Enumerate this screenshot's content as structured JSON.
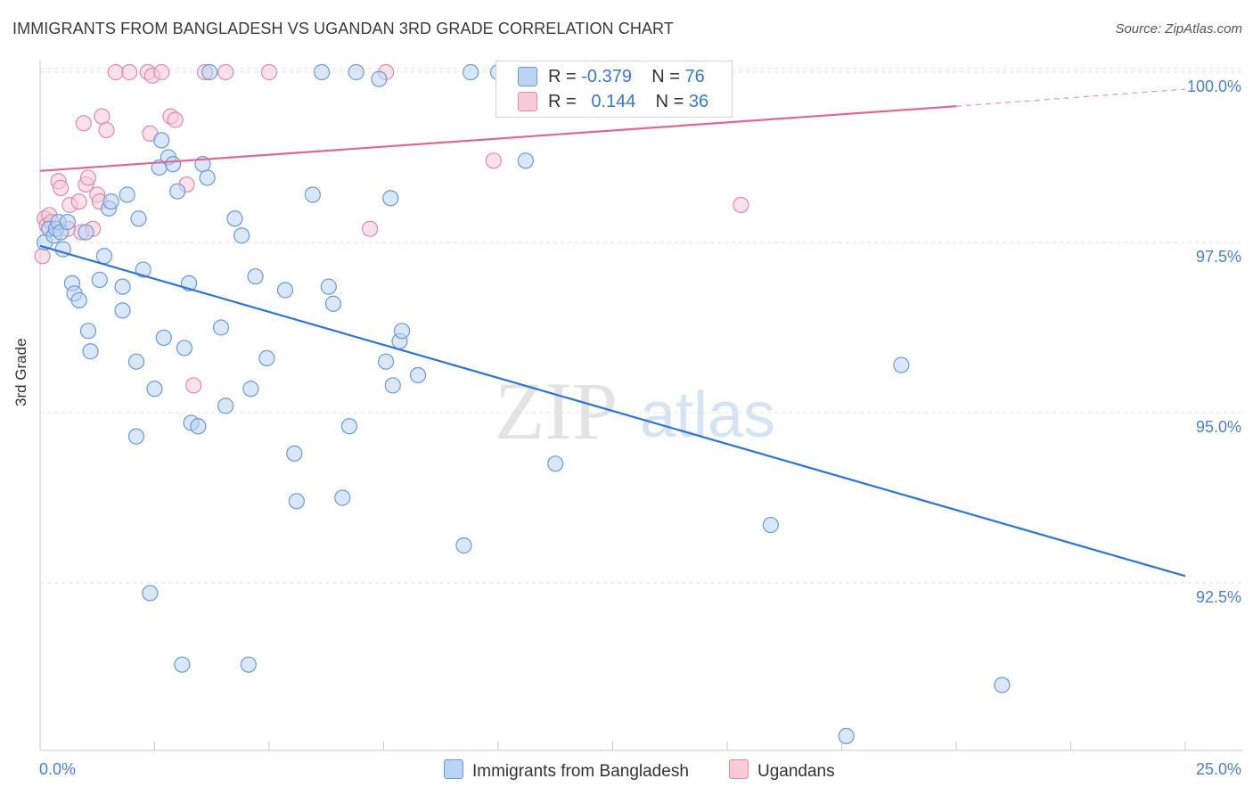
{
  "title": "IMMIGRANTS FROM BANGLADESH VS UGANDAN 3RD GRADE CORRELATION CHART",
  "source": "Source: ZipAtlas.com",
  "watermark": {
    "zip": "ZIP",
    "atlas": "atlas"
  },
  "legend": {
    "rows": [
      {
        "r_label": "R =",
        "r_value": "-0.379",
        "n_label": "N =",
        "n_value": "76",
        "color": "#a8c8f0"
      },
      {
        "r_label": "R =",
        "r_value": "0.144",
        "n_label": "N =",
        "n_value": "36",
        "color": "#f4b8ca"
      }
    ]
  },
  "bottom_legend": {
    "series1": "Immigrants from Bangladesh",
    "series2": "Ugandans"
  },
  "chart_data": {
    "type": "scatter",
    "title": "IMMIGRANTS FROM BANGLADESH VS UGANDAN 3RD GRADE CORRELATION CHART",
    "xlabel": "",
    "ylabel": "3rd Grade",
    "xlim": [
      0,
      25
    ],
    "ylim": [
      90.2,
      100.3
    ],
    "x_tick_labels": [
      "0.0%",
      "25.0%"
    ],
    "y_ticks": [
      92.5,
      95.0,
      97.5,
      100.0
    ],
    "y_tick_labels": [
      "92.5%",
      "95.0%",
      "97.5%",
      "100.0%"
    ],
    "grid": true,
    "legend_position": "top-center",
    "colors": {
      "series1_fill": "#bcd4f4",
      "series1_stroke": "#6a9ad8",
      "series1_line": "#2f74d0",
      "series2_fill": "#f8cbd8",
      "series2_stroke": "#e28aa6",
      "series2_line": "#e06890",
      "axis_text": "#4a7fd0",
      "grid": "#e3e3e3"
    },
    "series": [
      {
        "name": "Immigrants from Bangladesh",
        "r": -0.379,
        "n": 76,
        "trend": {
          "x": [
            0,
            25
          ],
          "y": [
            97.45,
            92.6
          ]
        },
        "points": [
          [
            0.1,
            97.5
          ],
          [
            0.2,
            97.7
          ],
          [
            0.3,
            97.6
          ],
          [
            0.35,
            97.7
          ],
          [
            0.4,
            97.8
          ],
          [
            0.5,
            97.4
          ],
          [
            0.45,
            97.65
          ],
          [
            0.6,
            97.8
          ],
          [
            0.7,
            96.9
          ],
          [
            0.75,
            96.75
          ],
          [
            0.85,
            96.65
          ],
          [
            1.0,
            97.65
          ],
          [
            1.05,
            96.2
          ],
          [
            1.1,
            95.9
          ],
          [
            1.3,
            96.95
          ],
          [
            1.4,
            97.3
          ],
          [
            1.5,
            98.0
          ],
          [
            1.55,
            98.1
          ],
          [
            1.8,
            96.85
          ],
          [
            1.8,
            96.5
          ],
          [
            1.9,
            98.2
          ],
          [
            2.1,
            95.75
          ],
          [
            2.1,
            94.65
          ],
          [
            2.15,
            97.85
          ],
          [
            2.25,
            97.1
          ],
          [
            2.4,
            92.35
          ],
          [
            2.5,
            95.35
          ],
          [
            2.6,
            98.6
          ],
          [
            2.65,
            99.0
          ],
          [
            2.7,
            96.1
          ],
          [
            2.8,
            98.75
          ],
          [
            2.9,
            98.65
          ],
          [
            3.0,
            98.25
          ],
          [
            3.1,
            91.3
          ],
          [
            3.15,
            95.95
          ],
          [
            3.25,
            96.9
          ],
          [
            3.3,
            94.85
          ],
          [
            3.45,
            94.8
          ],
          [
            3.55,
            98.65
          ],
          [
            3.65,
            98.45
          ],
          [
            3.7,
            100.0
          ],
          [
            3.95,
            96.25
          ],
          [
            4.05,
            95.1
          ],
          [
            4.25,
            97.85
          ],
          [
            4.4,
            97.6
          ],
          [
            4.55,
            91.3
          ],
          [
            4.6,
            95.35
          ],
          [
            4.7,
            97.0
          ],
          [
            4.95,
            95.8
          ],
          [
            5.35,
            96.8
          ],
          [
            5.55,
            94.4
          ],
          [
            5.6,
            93.7
          ],
          [
            5.95,
            98.2
          ],
          [
            6.15,
            100.0
          ],
          [
            6.3,
            96.85
          ],
          [
            6.4,
            96.6
          ],
          [
            6.6,
            93.75
          ],
          [
            6.75,
            94.8
          ],
          [
            6.9,
            100.0
          ],
          [
            7.4,
            99.9
          ],
          [
            7.55,
            95.75
          ],
          [
            7.65,
            98.15
          ],
          [
            7.7,
            95.4
          ],
          [
            7.85,
            96.05
          ],
          [
            7.9,
            96.2
          ],
          [
            8.25,
            95.55
          ],
          [
            9.25,
            93.05
          ],
          [
            9.4,
            100.0
          ],
          [
            10.0,
            100.0
          ],
          [
            10.6,
            98.7
          ],
          [
            11.25,
            94.25
          ],
          [
            11.95,
            100.0
          ],
          [
            15.95,
            93.35
          ],
          [
            18.8,
            95.7
          ],
          [
            21.0,
            91.0
          ],
          [
            17.6,
            90.25
          ]
        ]
      },
      {
        "name": "Ugandans",
        "r": 0.144,
        "n": 36,
        "trend": {
          "x": [
            0,
            20
          ],
          "y": [
            98.55,
            99.5
          ],
          "dash_to": [
            25,
            99.75
          ]
        },
        "points": [
          [
            0.05,
            97.3
          ],
          [
            0.1,
            97.85
          ],
          [
            0.15,
            97.75
          ],
          [
            0.2,
            97.9
          ],
          [
            0.25,
            97.8
          ],
          [
            0.4,
            98.4
          ],
          [
            0.45,
            98.3
          ],
          [
            0.65,
            98.05
          ],
          [
            0.85,
            98.1
          ],
          [
            0.9,
            97.65
          ],
          [
            0.95,
            99.25
          ],
          [
            1.0,
            98.35
          ],
          [
            1.05,
            98.45
          ],
          [
            1.15,
            97.7
          ],
          [
            1.25,
            98.2
          ],
          [
            1.3,
            98.1
          ],
          [
            1.35,
            99.35
          ],
          [
            1.45,
            99.15
          ],
          [
            1.65,
            100.0
          ],
          [
            1.95,
            100.0
          ],
          [
            2.35,
            100.0
          ],
          [
            2.45,
            99.95
          ],
          [
            2.4,
            99.1
          ],
          [
            2.65,
            100.0
          ],
          [
            2.85,
            99.35
          ],
          [
            2.95,
            99.3
          ],
          [
            3.2,
            98.35
          ],
          [
            3.35,
            95.4
          ],
          [
            3.6,
            100.0
          ],
          [
            4.05,
            100.0
          ],
          [
            5.0,
            100.0
          ],
          [
            7.2,
            97.7
          ],
          [
            7.55,
            100.0
          ],
          [
            9.9,
            98.7
          ],
          [
            15.3,
            98.05
          ],
          [
            0.6,
            97.7
          ]
        ]
      }
    ]
  }
}
